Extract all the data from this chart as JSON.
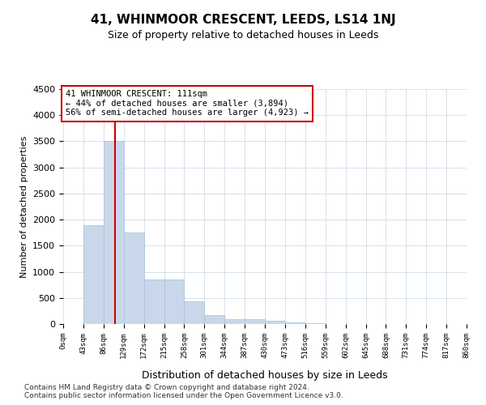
{
  "title": "41, WHINMOOR CRESCENT, LEEDS, LS14 1NJ",
  "subtitle": "Size of property relative to detached houses in Leeds",
  "xlabel": "Distribution of detached houses by size in Leeds",
  "ylabel": "Number of detached properties",
  "bar_color": "#c8d8ea",
  "bar_edge_color": "#a8c0d8",
  "grid_color": "#d0dce8",
  "annotation_box_color": "#cc0000",
  "vline_color": "#cc0000",
  "bin_edges": [
    0,
    43,
    86,
    129,
    172,
    215,
    258,
    301,
    344,
    387,
    430,
    473,
    516,
    559,
    602,
    645,
    688,
    731,
    774,
    817,
    860
  ],
  "bar_heights": [
    5,
    1900,
    3500,
    1750,
    850,
    850,
    430,
    170,
    100,
    100,
    55,
    30,
    10,
    5,
    3,
    2,
    1,
    1,
    0,
    0
  ],
  "property_size": 111,
  "annotation_line1": "41 WHINMOOR CRESCENT: 111sqm",
  "annotation_line2": "← 44% of detached houses are smaller (3,894)",
  "annotation_line3": "56% of semi-detached houses are larger (4,923) →",
  "ylim": [
    0,
    4500
  ],
  "tick_labels": [
    "0sqm",
    "43sqm",
    "86sqm",
    "129sqm",
    "172sqm",
    "215sqm",
    "258sqm",
    "301sqm",
    "344sqm",
    "387sqm",
    "430sqm",
    "473sqm",
    "516sqm",
    "559sqm",
    "602sqm",
    "645sqm",
    "688sqm",
    "731sqm",
    "774sqm",
    "817sqm",
    "860sqm"
  ],
  "footnote1": "Contains HM Land Registry data © Crown copyright and database right 2024.",
  "footnote2": "Contains public sector information licensed under the Open Government Licence v3.0.",
  "background_color": "#ffffff",
  "fig_width": 6.0,
  "fig_height": 5.0,
  "dpi": 100
}
